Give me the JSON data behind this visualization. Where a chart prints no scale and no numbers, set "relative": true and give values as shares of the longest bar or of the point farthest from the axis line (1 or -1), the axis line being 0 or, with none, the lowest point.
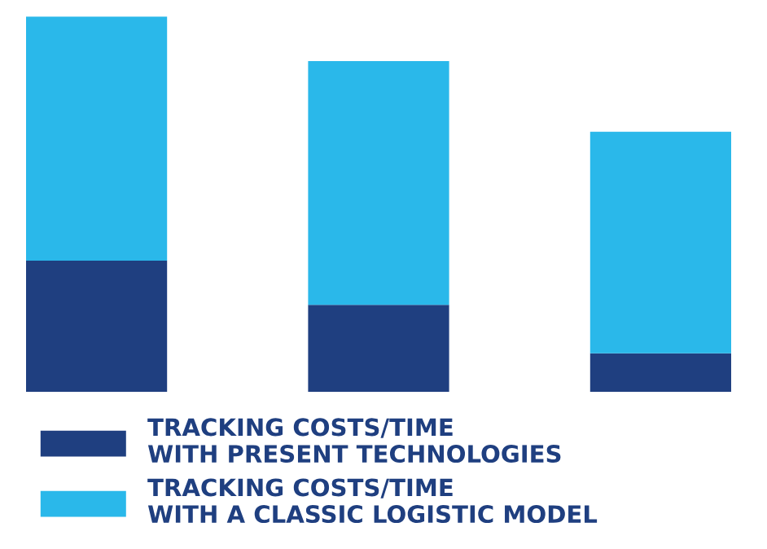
{
  "chart_data": {
    "type": "bar",
    "stacked": true,
    "relative": true,
    "categories": [
      null,
      null,
      null
    ],
    "legend": "bottom",
    "series": [
      {
        "name": "TRACKING COSTS/TIME\nWITH PRESENT TECHNOLOGIES",
        "color": "#1f3f80",
        "values": [
          0.35,
          0.232,
          0.103
        ]
      },
      {
        "name": "TRACKING COSTS/TIME\nWITH A CLASSIC LOGISTIC MODEL",
        "color": "#2ab8ea",
        "values": [
          0.65,
          0.649,
          0.59
        ]
      }
    ]
  }
}
